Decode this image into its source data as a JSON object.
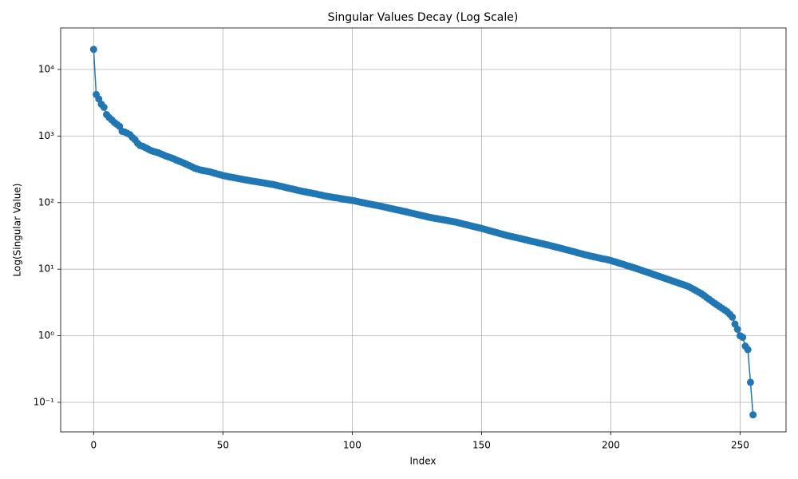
{
  "chart_data": {
    "type": "line",
    "title": "Singular Values Decay (Log Scale)",
    "x_label": "Index",
    "y_label": "Log(Singular Value)",
    "log_y": true,
    "grid": true,
    "marker": "circle",
    "xlim": [
      -12.75,
      267.75
    ],
    "xticks": [
      0,
      50,
      100,
      150,
      200,
      250
    ],
    "ylim": [
      0.036,
      42000
    ],
    "yticks": [
      {
        "value": 0.1,
        "label": "10⁻¹"
      },
      {
        "value": 1,
        "label": "10⁰"
      },
      {
        "value": 10,
        "label": "10¹"
      },
      {
        "value": 100,
        "label": "10²"
      },
      {
        "value": 1000,
        "label": "10³"
      },
      {
        "value": 10000,
        "label": "10⁴"
      }
    ],
    "x": [
      0,
      1,
      2,
      3,
      4,
      5,
      6,
      7,
      8,
      9,
      10,
      11,
      12,
      13,
      14,
      15,
      16,
      17,
      18,
      19,
      20,
      21,
      22,
      23,
      24,
      25,
      26,
      27,
      28,
      29,
      30,
      31,
      32,
      33,
      34,
      35,
      36,
      37,
      38,
      39,
      40,
      41,
      42,
      43,
      44,
      45,
      46,
      47,
      48,
      49,
      50,
      51,
      52,
      53,
      54,
      55,
      56,
      57,
      58,
      59,
      60,
      61,
      62,
      63,
      64,
      65,
      66,
      67,
      68,
      69,
      70,
      71,
      72,
      73,
      74,
      75,
      76,
      77,
      78,
      79,
      80,
      81,
      82,
      83,
      84,
      85,
      86,
      87,
      88,
      89,
      90,
      91,
      92,
      93,
      94,
      95,
      96,
      97,
      98,
      99,
      100,
      101,
      102,
      103,
      104,
      105,
      106,
      107,
      108,
      109,
      110,
      111,
      112,
      113,
      114,
      115,
      116,
      117,
      118,
      119,
      120,
      121,
      122,
      123,
      124,
      125,
      126,
      127,
      128,
      129,
      130,
      131,
      132,
      133,
      134,
      135,
      136,
      137,
      138,
      139,
      140,
      141,
      142,
      143,
      144,
      145,
      146,
      147,
      148,
      149,
      150,
      151,
      152,
      153,
      154,
      155,
      156,
      157,
      158,
      159,
      160,
      161,
      162,
      163,
      164,
      165,
      166,
      167,
      168,
      169,
      170,
      171,
      172,
      173,
      174,
      175,
      176,
      177,
      178,
      179,
      180,
      181,
      182,
      183,
      184,
      185,
      186,
      187,
      188,
      189,
      190,
      191,
      192,
      193,
      194,
      195,
      196,
      197,
      198,
      199,
      200,
      201,
      202,
      203,
      204,
      205,
      206,
      207,
      208,
      209,
      210,
      211,
      212,
      213,
      214,
      215,
      216,
      217,
      218,
      219,
      220,
      221,
      222,
      223,
      224,
      225,
      226,
      227,
      228,
      229,
      230,
      231,
      232,
      233,
      234,
      235,
      236,
      237,
      238,
      239,
      240,
      241,
      242,
      243,
      244,
      245,
      246,
      247,
      248,
      249,
      250,
      251,
      252,
      253,
      254,
      255
    ],
    "series": [
      {
        "color": "#1f77b4",
        "values": [
          20000,
          4200,
          3600,
          3000,
          2700,
          2100,
          1900,
          1750,
          1600,
          1500,
          1400,
          1180,
          1150,
          1100,
          1050,
          950,
          880,
          780,
          720,
          700,
          670,
          640,
          610,
          590,
          575,
          560,
          540,
          520,
          500,
          485,
          470,
          455,
          435,
          420,
          405,
          390,
          375,
          360,
          345,
          330,
          320,
          312,
          305,
          300,
          295,
          290,
          282,
          275,
          268,
          262,
          255,
          251,
          246,
          242,
          238,
          234,
          230,
          226,
          222,
          219,
          215,
          212,
          209,
          206,
          203,
          200,
          197,
          194,
          191,
          188,
          185,
          181,
          177,
          174,
          170,
          166,
          163,
          160,
          156,
          153,
          150,
          147,
          145,
          142,
          140,
          137,
          135,
          132,
          130,
          127,
          125,
          123,
          121,
          119,
          118,
          116,
          114,
          112,
          111,
          109,
          108,
          106,
          104,
          102,
          100,
          98.3,
          96.5,
          94.8,
          93.1,
          91.5,
          90,
          88.3,
          86.6,
          84.9,
          83.2,
          81.6,
          80,
          78.4,
          76.9,
          75.4,
          74,
          72.5,
          71,
          69.5,
          68,
          66.6,
          65.2,
          63.9,
          62.6,
          61.3,
          60,
          59,
          58.1,
          57.2,
          56.3,
          55.4,
          54.5,
          53.6,
          52.7,
          51.8,
          51,
          49.9,
          48.8,
          47.7,
          46.7,
          45.7,
          44.7,
          43.7,
          42.8,
          41.9,
          41,
          40,
          39,
          38,
          37.1,
          36.2,
          35.3,
          34.4,
          33.6,
          32.8,
          32,
          31.3,
          30.7,
          30.1,
          29.5,
          28.9,
          28.3,
          27.7,
          27.1,
          26.5,
          26,
          25.5,
          24.9,
          24.4,
          23.9,
          23.4,
          22.9,
          22.4,
          21.9,
          21.4,
          21,
          20.5,
          20,
          19.5,
          19.1,
          18.6,
          18.2,
          17.7,
          17.3,
          16.9,
          16.5,
          16.2,
          15.8,
          15.5,
          15.2,
          14.9,
          14.6,
          14.3,
          14.1,
          13.8,
          13.5,
          13.1,
          12.8,
          12.4,
          12.1,
          11.8,
          11.4,
          11.1,
          10.8,
          10.5,
          10.2,
          9.89,
          9.59,
          9.3,
          9.02,
          8.75,
          8.48,
          8.22,
          7.98,
          7.73,
          7.5,
          7.27,
          7.05,
          6.84,
          6.63,
          6.43,
          6.23,
          6.04,
          5.86,
          5.68,
          5.5,
          5.24,
          4.99,
          4.75,
          4.52,
          4.3,
          4.03,
          3.77,
          3.53,
          3.31,
          3.1,
          2.92,
          2.75,
          2.59,
          2.44,
          2.3,
          2.1,
          1.9,
          1.5,
          1.25,
          1.0,
          0.95,
          0.7,
          0.62,
          0.2,
          0.065
        ]
      }
    ]
  }
}
